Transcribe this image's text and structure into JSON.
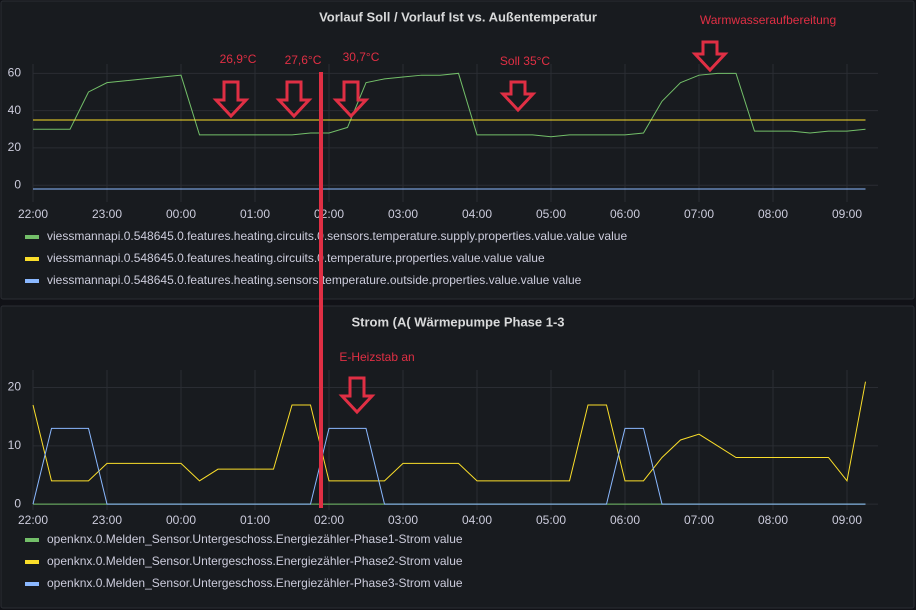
{
  "chart_data": [
    {
      "type": "line",
      "title": "Vorlauf Soll / Vorlauf Ist vs. Außentemperatur",
      "categories": [
        "22:00",
        null,
        null,
        null,
        "23:00",
        null,
        null,
        null,
        "00:00",
        null,
        null,
        null,
        "01:00",
        null,
        null,
        null,
        "02:00",
        null,
        null,
        null,
        "03:00",
        null,
        null,
        null,
        "04:00",
        null,
        null,
        null,
        "05:00",
        null,
        null,
        null,
        "06:00",
        null,
        null,
        null,
        "07:00",
        null,
        null,
        null,
        "08:00",
        null,
        null,
        null,
        "09:00",
        null
      ],
      "series": [
        {
          "name": "viessmannapi.0.548645.0.features.heating.circuits.0.sensors.temperature.supply.properties.value.value value",
          "color": "#73bf69",
          "values": [
            30,
            30,
            30,
            50,
            55,
            56,
            57,
            58,
            59,
            27,
            27,
            27,
            27,
            27,
            27,
            28,
            28,
            31,
            55,
            57,
            58,
            59,
            59,
            60,
            27,
            27,
            27,
            27,
            26,
            27,
            27,
            27,
            27,
            28,
            45,
            55,
            59,
            60,
            60,
            29,
            29,
            29,
            28,
            29,
            29,
            30
          ]
        },
        {
          "name": "viessmannapi.0.548645.0.features.heating.circuits.0.temperature.properties.value.value value",
          "color": "#fade2a",
          "values": [
            35,
            35,
            35,
            35,
            35,
            35,
            35,
            35,
            35,
            35,
            35,
            35,
            35,
            35,
            35,
            35,
            35,
            35,
            35,
            35,
            35,
            35,
            35,
            35,
            35,
            35,
            35,
            35,
            35,
            35,
            35,
            35,
            35,
            35,
            35,
            35,
            35,
            35,
            35,
            35,
            35,
            35,
            35,
            35,
            35,
            35
          ]
        },
        {
          "name": "viessmannapi.0.548645.0.features.heating.sensors.temperature.outside.properties.value.value value",
          "color": "#8ab8ff",
          "values": [
            -2,
            -2,
            -2,
            -2,
            -2,
            -2,
            -2,
            -2,
            -2,
            -2,
            -2,
            -2,
            -2,
            -2,
            -2,
            -2,
            -2,
            -2,
            -2,
            -2,
            -2,
            -2,
            -2,
            -2,
            -2,
            -2,
            -2,
            -2,
            -2,
            -2,
            -2,
            -2,
            -2,
            -2,
            -2,
            -2,
            -2,
            -2,
            -2,
            -2,
            -2,
            -2,
            -2,
            -2,
            -2,
            -2
          ]
        }
      ],
      "ylim": [
        -9,
        65
      ],
      "yticks": [
        0,
        20,
        40,
        60
      ],
      "grid": true,
      "annotations": [
        "26,9°C",
        "27,6°C",
        "30,7°C",
        "Soll 35°C",
        "Warmwasseraufbereitung"
      ]
    },
    {
      "type": "line",
      "title": "Strom (A( Wärmepumpe Phase 1-3",
      "categories": [
        "22:00",
        null,
        null,
        null,
        "23:00",
        null,
        null,
        null,
        "00:00",
        null,
        null,
        null,
        "01:00",
        null,
        null,
        null,
        "02:00",
        null,
        null,
        null,
        "03:00",
        null,
        null,
        null,
        "04:00",
        null,
        null,
        null,
        "05:00",
        null,
        null,
        null,
        "06:00",
        null,
        null,
        null,
        "07:00",
        null,
        null,
        null,
        "08:00",
        null,
        null,
        null,
        "09:00",
        null
      ],
      "series": [
        {
          "name": "openknx.0.Melden_Sensor.Untergeschoss.Energiezähler-Phase1-Strom value",
          "color": "#73bf69",
          "values": [
            0,
            0,
            0,
            0,
            0,
            0,
            0,
            0,
            0,
            0,
            0,
            0,
            0,
            0,
            0,
            0,
            0,
            0,
            0,
            0,
            0,
            0,
            0,
            0,
            0,
            0,
            0,
            0,
            0,
            0,
            0,
            0,
            0,
            0,
            0,
            0,
            0,
            0,
            0,
            0,
            0,
            0,
            0,
            0,
            0,
            0
          ]
        },
        {
          "name": "openknx.0.Melden_Sensor.Untergeschoss.Energiezähler-Phase2-Strom value",
          "color": "#fade2a",
          "values": [
            17,
            4,
            4,
            4,
            7,
            7,
            7,
            7,
            7,
            4,
            6,
            6,
            6,
            6,
            17,
            17,
            4,
            4,
            4,
            4,
            7,
            7,
            7,
            7,
            4,
            4,
            4,
            4,
            4,
            4,
            17,
            17,
            4,
            4,
            8,
            11,
            12,
            10,
            8,
            8,
            8,
            8,
            8,
            8,
            4,
            21
          ]
        },
        {
          "name": "openknx.0.Melden_Sensor.Untergeschoss.Energiezähler-Phase3-Strom value",
          "color": "#8ab8ff",
          "values": [
            0,
            13,
            13,
            13,
            0,
            0,
            0,
            0,
            0,
            0,
            0,
            0,
            0,
            0,
            0,
            0,
            13,
            13,
            13,
            0,
            0,
            0,
            0,
            0,
            0,
            0,
            0,
            0,
            0,
            0,
            0,
            0,
            13,
            13,
            0,
            0,
            0,
            0,
            0,
            0,
            0,
            0,
            0,
            0,
            0,
            0
          ]
        }
      ],
      "ylim": [
        -1,
        23
      ],
      "yticks": [
        0,
        10,
        20
      ],
      "grid": true,
      "annotations": [
        "E-Heizstab an"
      ]
    }
  ]
}
